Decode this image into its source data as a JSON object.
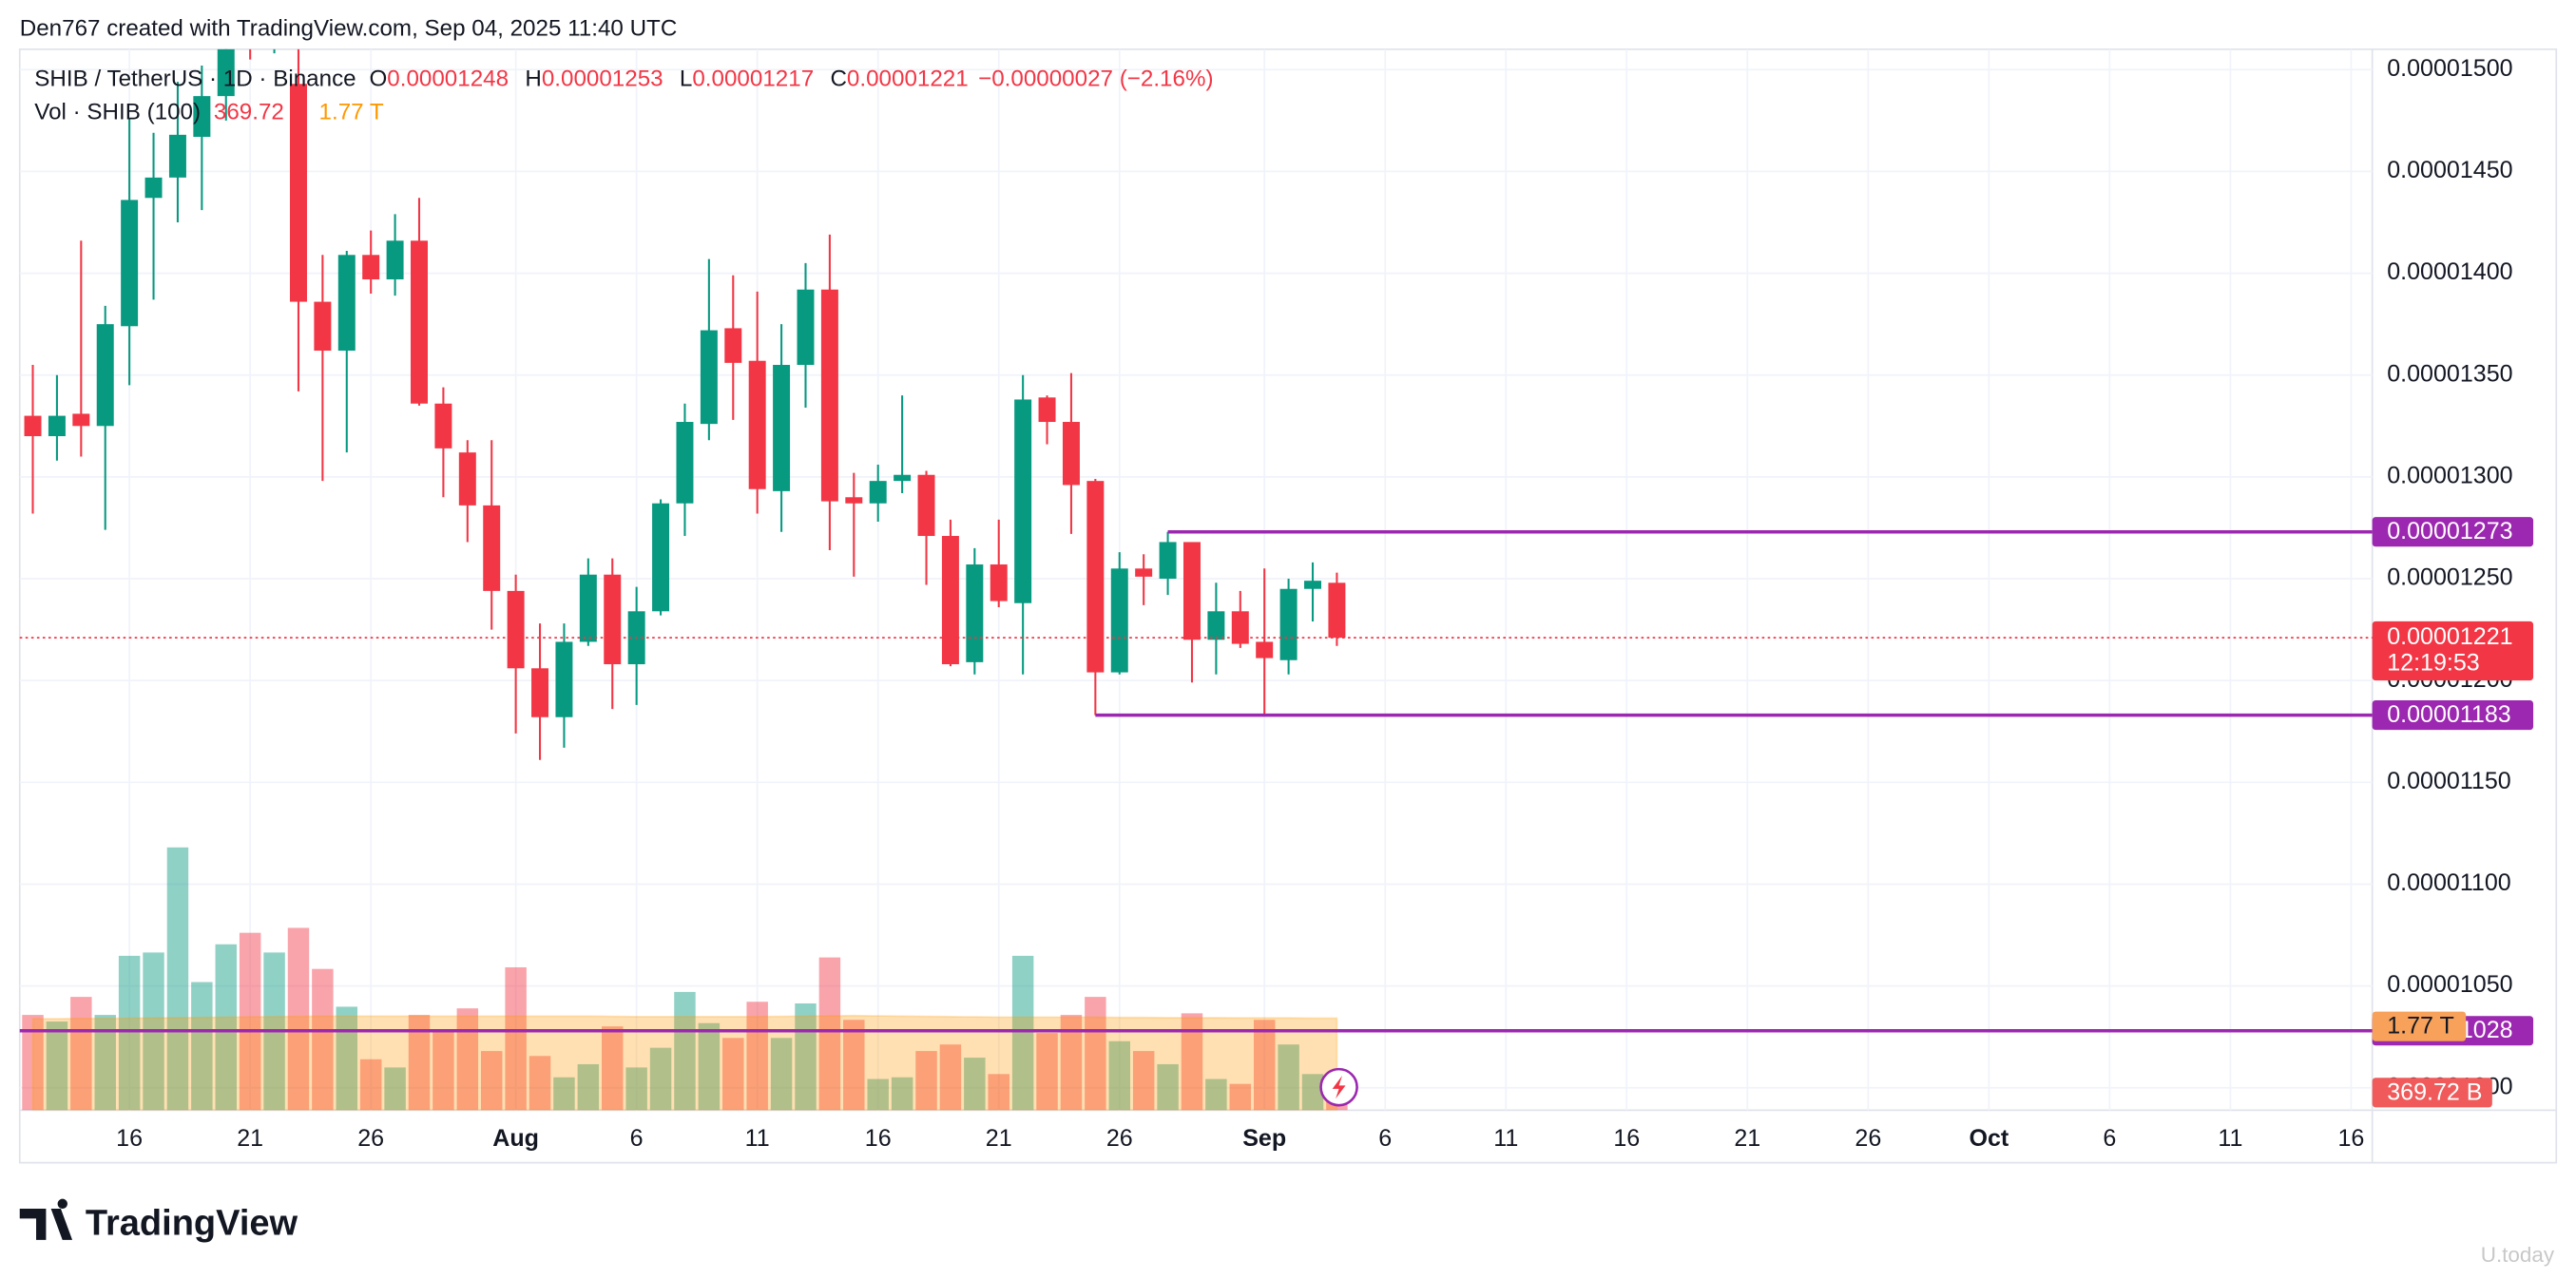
{
  "header": {
    "caption": "Den767 created with TradingView.com, Sep 04, 2025 11:40 UTC"
  },
  "footer": {
    "brand": "TradingView",
    "watermark": "U.today"
  },
  "chart_data": {
    "type": "candlestick",
    "legend": {
      "symbol": "SHIB / TetherUS · 1D · Binance",
      "o": "O",
      "h": "H",
      "l": "L",
      "c": "C",
      "change": "−0.00000027 (−2.16%)",
      "volume_name": "Vol · SHIB (100)",
      "countdown": "12:19:53"
    },
    "up_color": "#089981",
    "down_color": "#f23645",
    "ma_color": "#ff9800",
    "line_color": "#9c27b0",
    "grid": true,
    "x": [
      "2025-07-12",
      "2025-07-13",
      "2025-07-14",
      "2025-07-15",
      "2025-07-16",
      "2025-07-17",
      "2025-07-18",
      "2025-07-19",
      "2025-07-20",
      "2025-07-21",
      "2025-07-22",
      "2025-07-23",
      "2025-07-24",
      "2025-07-25",
      "2025-07-26",
      "2025-07-27",
      "2025-07-28",
      "2025-07-29",
      "2025-07-30",
      "2025-07-31",
      "2025-08-01",
      "2025-08-02",
      "2025-08-03",
      "2025-08-04",
      "2025-08-05",
      "2025-08-06",
      "2025-08-07",
      "2025-08-08",
      "2025-08-09",
      "2025-08-10",
      "2025-08-11",
      "2025-08-12",
      "2025-08-13",
      "2025-08-14",
      "2025-08-15",
      "2025-08-16",
      "2025-08-17",
      "2025-08-18",
      "2025-08-19",
      "2025-08-20",
      "2025-08-21",
      "2025-08-22",
      "2025-08-23",
      "2025-08-24",
      "2025-08-25",
      "2025-08-26",
      "2025-08-27",
      "2025-08-28",
      "2025-08-29",
      "2025-08-30",
      "2025-08-31",
      "2025-09-01",
      "2025-09-02",
      "2025-09-03",
      "2025-09-04"
    ],
    "open": [
      1.33e-05,
      1.32e-05,
      1.331e-05,
      1.325e-05,
      1.374e-05,
      1.437e-05,
      1.447e-05,
      1.467e-05,
      1.487e-05,
      1.53e-05,
      1.515e-05,
      1.493e-05,
      1.386e-05,
      1.362e-05,
      1.409e-05,
      1.397e-05,
      1.416e-05,
      1.336e-05,
      1.312e-05,
      1.286e-05,
      1.244e-05,
      1.206e-05,
      1.182e-05,
      1.219e-05,
      1.252e-05,
      1.208e-05,
      1.234e-05,
      1.287e-05,
      1.326e-05,
      1.373e-05,
      1.357e-05,
      1.293e-05,
      1.355e-05,
      1.392e-05,
      1.29e-05,
      1.287e-05,
      1.298e-05,
      1.301e-05,
      1.271e-05,
      1.209e-05,
      1.257e-05,
      1.238e-05,
      1.339e-05,
      1.327e-05,
      1.298e-05,
      1.204e-05,
      1.255e-05,
      1.25e-05,
      1.268e-05,
      1.22e-05,
      1.234e-05,
      1.219e-05,
      1.21e-05,
      1.245e-05,
      1.248e-05
    ],
    "high": [
      1.355e-05,
      1.35e-05,
      1.416e-05,
      1.384e-05,
      1.476e-05,
      1.469e-05,
      1.494e-05,
      1.502e-05,
      1.53e-05,
      1.545e-05,
      1.55e-05,
      1.52e-05,
      1.409e-05,
      1.411e-05,
      1.421e-05,
      1.429e-05,
      1.437e-05,
      1.344e-05,
      1.318e-05,
      1.318e-05,
      1.252e-05,
      1.228e-05,
      1.228e-05,
      1.26e-05,
      1.26e-05,
      1.246e-05,
      1.289e-05,
      1.336e-05,
      1.407e-05,
      1.399e-05,
      1.391e-05,
      1.375e-05,
      1.405e-05,
      1.419e-05,
      1.302e-05,
      1.306e-05,
      1.34e-05,
      1.303e-05,
      1.279e-05,
      1.265e-05,
      1.279e-05,
      1.35e-05,
      1.34e-05,
      1.351e-05,
      1.299e-05,
      1.263e-05,
      1.262e-05,
      1.273e-05,
      1.268e-05,
      1.248e-05,
      1.244e-05,
      1.255e-05,
      1.25e-05,
      1.258e-05,
      1.253e-05
    ],
    "low": [
      1.282e-05,
      1.308e-05,
      1.31e-05,
      1.274e-05,
      1.345e-05,
      1.387e-05,
      1.425e-05,
      1.431e-05,
      1.475e-05,
      1.505e-05,
      1.508e-05,
      1.342e-05,
      1.298e-05,
      1.312e-05,
      1.39e-05,
      1.389e-05,
      1.335e-05,
      1.29e-05,
      1.268e-05,
      1.225e-05,
      1.174e-05,
      1.161e-05,
      1.167e-05,
      1.217e-05,
      1.186e-05,
      1.188e-05,
      1.232e-05,
      1.271e-05,
      1.318e-05,
      1.328e-05,
      1.282e-05,
      1.273e-05,
      1.334e-05,
      1.264e-05,
      1.251e-05,
      1.278e-05,
      1.292e-05,
      1.247e-05,
      1.207e-05,
      1.203e-05,
      1.236e-05,
      1.203e-05,
      1.316e-05,
      1.272e-05,
      1.183e-05,
      1.203e-05,
      1.237e-05,
      1.242e-05,
      1.199e-05,
      1.203e-05,
      1.216e-05,
      1.183e-05,
      1.203e-05,
      1.229e-05,
      1.217e-05
    ],
    "close": [
      1.32e-05,
      1.33e-05,
      1.325e-05,
      1.375e-05,
      1.436e-05,
      1.447e-05,
      1.468e-05,
      1.487e-05,
      1.515e-05,
      1.515e-05,
      1.525e-05,
      1.386e-05,
      1.362e-05,
      1.409e-05,
      1.397e-05,
      1.416e-05,
      1.336e-05,
      1.314e-05,
      1.286e-05,
      1.244e-05,
      1.206e-05,
      1.182e-05,
      1.219e-05,
      1.252e-05,
      1.208e-05,
      1.234e-05,
      1.287e-05,
      1.327e-05,
      1.372e-05,
      1.356e-05,
      1.294e-05,
      1.355e-05,
      1.392e-05,
      1.288e-05,
      1.287e-05,
      1.298e-05,
      1.301e-05,
      1.271e-05,
      1.208e-05,
      1.257e-05,
      1.239e-05,
      1.338e-05,
      1.327e-05,
      1.296e-05,
      1.204e-05,
      1.255e-05,
      1.251e-05,
      1.268e-05,
      1.22e-05,
      1.234e-05,
      1.218e-05,
      1.211e-05,
      1.245e-05,
      1.249e-05,
      1.221e-05
    ],
    "volume": {
      "values": [
        1833000000000.0,
        1706000000000.0,
        2180000000000.0,
        1833000000000.0,
        2970000000000.0,
        3034000000000.0,
        5056000000000.0,
        2465000000000.0,
        3192000000000.0,
        3413000000000.0,
        3034000000000.0,
        3508000000000.0,
        2718000000000.0,
        1991000000000.0,
        980000000000.0,
        822000000000.0,
        1833000000000.0,
        1548000000000.0,
        1959000000000.0,
        1138000000000.0,
        2749000000000.0,
        1043000000000.0,
        632000000000.0,
        885000000000.0,
        1612000000000.0,
        822000000000.0,
        1201000000000.0,
        2275000000000.0,
        1675000000000.0,
        1390000000000.0,
        2086000000000.0,
        1390000000000.0,
        2054000000000.0,
        2939000000000.0,
        1738000000000.0,
        600000000000.0,
        632000000000.0,
        1138000000000.0,
        1264000000000.0,
        1011000000000.0,
        695000000000.0,
        2970000000000.0,
        1485000000000.0,
        1833000000000.0,
        2180000000000.0,
        1327000000000.0,
        1138000000000.0,
        885000000000.0,
        1864000000000.0,
        600000000000.0,
        506000000000.0,
        1738000000000.0,
        1264000000000.0,
        695000000000.0,
        369720000000.0
      ],
      "value_labels": [
        null,
        null,
        null,
        null,
        null,
        null,
        null,
        null,
        null,
        null,
        null,
        null,
        null,
        null,
        null,
        null,
        null,
        null,
        null,
        null,
        null,
        null,
        null,
        null,
        null,
        null,
        null,
        null,
        null,
        null,
        null,
        null,
        null,
        null,
        null,
        null,
        null,
        null,
        null,
        null,
        null,
        null,
        null,
        null,
        null,
        null,
        null,
        null,
        null,
        null,
        null,
        null,
        null,
        null,
        "369.72 B"
      ]
    },
    "volume_ma": {
      "values": [
        1760000000000.0,
        1760000000000.0,
        1765000000000.0,
        1765000000000.0,
        1770000000000.0,
        1775000000000.0,
        1780000000000.0,
        1785000000000.0,
        1790000000000.0,
        1795000000000.0,
        1800000000000.0,
        1805000000000.0,
        1810000000000.0,
        1810000000000.0,
        1810000000000.0,
        1810000000000.0,
        1810000000000.0,
        1810000000000.0,
        1810000000000.0,
        1810000000000.0,
        1810000000000.0,
        1810000000000.0,
        1810000000000.0,
        1810000000000.0,
        1805000000000.0,
        1800000000000.0,
        1800000000000.0,
        1800000000000.0,
        1800000000000.0,
        1800000000000.0,
        1800000000000.0,
        1805000000000.0,
        1810000000000.0,
        1815000000000.0,
        1820000000000.0,
        1815000000000.0,
        1810000000000.0,
        1805000000000.0,
        1800000000000.0,
        1795000000000.0,
        1790000000000.0,
        1790000000000.0,
        1790000000000.0,
        1790000000000.0,
        1790000000000.0,
        1785000000000.0,
        1785000000000.0,
        1780000000000.0,
        1780000000000.0,
        1780000000000.0,
        1775000000000.0,
        1775000000000.0,
        1775000000000.0,
        1770000000000.0,
        1770000000000.0
      ],
      "value_labels": [
        null,
        null,
        null,
        null,
        null,
        null,
        null,
        null,
        null,
        null,
        null,
        null,
        null,
        null,
        null,
        null,
        null,
        null,
        null,
        null,
        null,
        null,
        null,
        null,
        null,
        null,
        null,
        null,
        null,
        null,
        null,
        null,
        null,
        null,
        null,
        null,
        null,
        null,
        null,
        null,
        null,
        null,
        null,
        null,
        null,
        null,
        null,
        null,
        null,
        null,
        null,
        null,
        null,
        null,
        "1.77 T"
      ]
    },
    "volume_ylim": [
      0,
      6320000000000.0
    ],
    "xlim": [
      "2025-07-11T11:00Z",
      "2025-10-16T21:00Z"
    ],
    "xticks": [
      {
        "value": "2025-07-16",
        "label": "16"
      },
      {
        "value": "2025-07-21",
        "label": "21"
      },
      {
        "value": "2025-07-26",
        "label": "26"
      },
      {
        "value": "2025-08-01",
        "label": "Aug"
      },
      {
        "value": "2025-08-06",
        "label": "6"
      },
      {
        "value": "2025-08-11",
        "label": "11"
      },
      {
        "value": "2025-08-16",
        "label": "16"
      },
      {
        "value": "2025-08-21",
        "label": "21"
      },
      {
        "value": "2025-08-26",
        "label": "26"
      },
      {
        "value": "2025-09-01",
        "label": "Sep"
      },
      {
        "value": "2025-09-06",
        "label": "6"
      },
      {
        "value": "2025-09-11",
        "label": "11"
      },
      {
        "value": "2025-09-16",
        "label": "16"
      },
      {
        "value": "2025-09-21",
        "label": "21"
      },
      {
        "value": "2025-09-26",
        "label": "26"
      },
      {
        "value": "2025-10-01",
        "label": "Oct"
      },
      {
        "value": "2025-10-06",
        "label": "6"
      },
      {
        "value": "2025-10-11",
        "label": "11"
      },
      {
        "value": "2025-10-16",
        "label": "16"
      }
    ],
    "ylim": [
      9.89e-06,
      1.51e-05
    ],
    "yticks": [
      {
        "value": 1.5e-05,
        "label": "0.00001500"
      },
      {
        "value": 1.45e-05,
        "label": "0.00001450"
      },
      {
        "value": 1.4e-05,
        "label": "0.00001400"
      },
      {
        "value": 1.35e-05,
        "label": "0.00001350"
      },
      {
        "value": 1.3e-05,
        "label": "0.00001300"
      },
      {
        "value": 1.25e-05,
        "label": "0.00001250"
      },
      {
        "value": 1.2e-05,
        "label": "0.00001200"
      },
      {
        "value": 1.15e-05,
        "label": "0.00001150"
      },
      {
        "value": 1.1e-05,
        "label": "0.00001100"
      },
      {
        "value": 1.05e-05,
        "label": "0.00001050"
      },
      {
        "value": 1e-05,
        "label": "0.00001000"
      }
    ],
    "hlines": [
      {
        "value": 1.273e-05,
        "start": "2025-08-28"
      },
      {
        "value": 1.183e-05,
        "start": "2025-08-25"
      },
      {
        "value": 1.028e-05
      }
    ]
  }
}
